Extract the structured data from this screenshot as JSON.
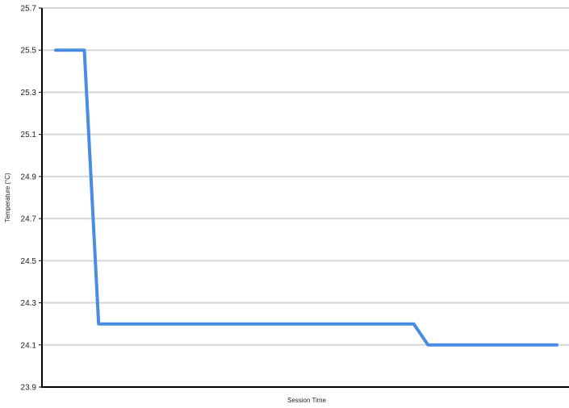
{
  "chart_data": {
    "type": "line",
    "title": "",
    "xlabel": "Session Time",
    "ylabel": "Temperature (°C)",
    "ylim": [
      23.9,
      25.7
    ],
    "yticks": [
      "25.7",
      "25.5",
      "25.3",
      "25.1",
      "24.9",
      "24.7",
      "24.5",
      "24.3",
      "24.1",
      "23.9"
    ],
    "grid": true,
    "series": [
      {
        "color": "#4a8be3",
        "x": [
          1,
          3,
          4,
          26,
          27,
          36
        ],
        "y": [
          25.5,
          25.5,
          24.2,
          24.2,
          24.1,
          24.1
        ]
      }
    ]
  }
}
